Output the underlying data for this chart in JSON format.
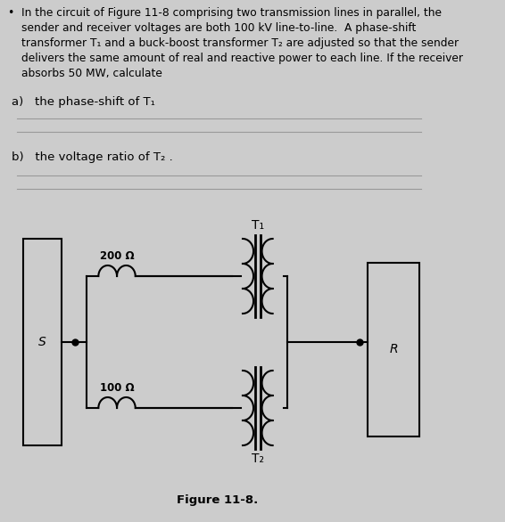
{
  "background_color": "#cccccc",
  "text_color": "#000000",
  "title_text": "In the circuit of Figure 11-8 comprising two transmission lines in parallel, the\nsender and receiver voltages are both 100 kV line-to-line.  A phase-shift\ntransformer T₁ and a buck-boost transformer T₂ are adjusted so that the sender\ndelivers the same amount of real and reactive power to each line. If the receiver\nabsorbs 50 MW, calculate",
  "part_a": "a)   the phase-shift of T₁",
  "part_b": "b)   the voltage ratio of T₂ .",
  "figure_caption": "Figure 11-8.",
  "label_200": "200 Ω",
  "label_100": "100 Ω",
  "label_T1": "T₁",
  "label_T2": "T₂",
  "label_S": "S",
  "label_R": "R",
  "line_color": "#000000",
  "answer_line_color": "#999999",
  "title_fontsize": 8.8,
  "part_fontsize": 9.5,
  "label_fontsize": 10,
  "caption_fontsize": 9.5
}
